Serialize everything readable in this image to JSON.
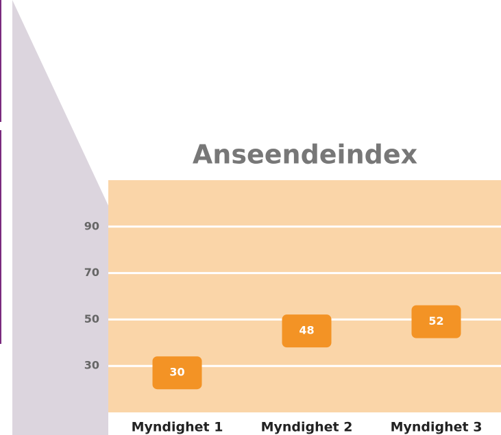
{
  "chart_data": {
    "type": "label-point",
    "title": "Anseendeindex",
    "categories": [
      "Myndighet 1",
      "Myndighet 2",
      "Myndighet 3"
    ],
    "values": [
      30,
      48,
      52
    ],
    "color": "#f39325",
    "ylim": [
      10,
      110
    ],
    "yticks": [
      30,
      50,
      70,
      90
    ],
    "grid": true
  }
}
